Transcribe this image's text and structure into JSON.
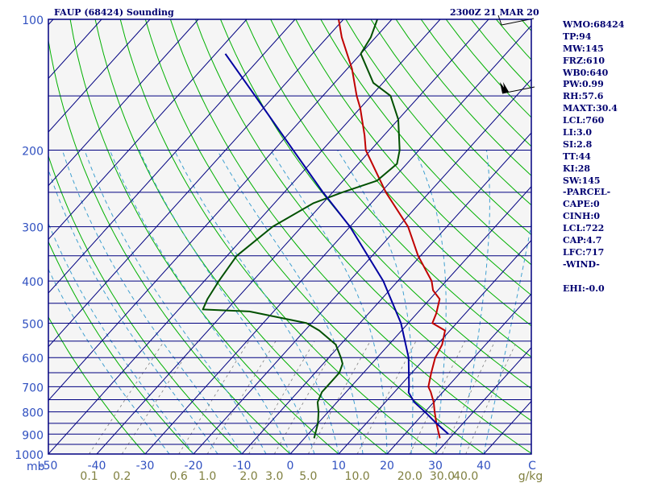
{
  "header": {
    "station": "FAUP (68424) Sounding",
    "time": "2300Z 21 MAR 20"
  },
  "indices": [
    "WMO:68424",
    "TP:94",
    "MW:145",
    "FRZ:610",
    "WB0:640",
    "PW:0.99",
    "RH:57.6",
    "MAXT:30.4",
    "LCL:760",
    "LI:3.0",
    "SI:2.8",
    "TT:44",
    "KI:28",
    "SW:145",
    "-PARCEL-",
    "CAPE:0",
    "CINH:0",
    "LCL:722",
    "CAP:4.7",
    "LFC:717",
    "-WIND-",
    "",
    "EHI:-0.0"
  ],
  "colors": {
    "background": "#ffffff",
    "plot_bg": "#f5f5f5",
    "frame": "#000080",
    "isobar": "#000080",
    "isotherm": "#000080",
    "dry_adiabat": "#00b000",
    "moist_adiabat": "#40a0d0",
    "mixing_ratio": "#808080",
    "temperature": "#c00000",
    "dewpoint": "#005000",
    "parcel": "#0000a0",
    "pressure_labels": "#3050c0",
    "temp_labels": "#3050c0",
    "mixratio_labels": "#808040",
    "text": "#000070"
  },
  "chart_data": {
    "type": "skew-t",
    "title": "FAUP (68424) Sounding",
    "xlabel": "",
    "ylabel": "mb",
    "xlim": [
      -50,
      50
    ],
    "ylim": [
      1000,
      100
    ],
    "y_scale": "log",
    "pressure_ticks": [
      100,
      200,
      300,
      400,
      500,
      600,
      700,
      800,
      900,
      1000
    ],
    "isobars": [
      100,
      150,
      200,
      250,
      300,
      350,
      400,
      450,
      500,
      550,
      600,
      650,
      700,
      750,
      800,
      850,
      900,
      950,
      1000
    ],
    "temperature_ticks": [
      -50,
      -40,
      -30,
      -20,
      -10,
      0,
      10,
      20,
      30,
      40
    ],
    "temperature_tick_labels": [
      "-50",
      "-40",
      "-30",
      "-20",
      "-10",
      "0",
      "10",
      "20",
      "30",
      "40"
    ],
    "temperature_unit_label": "C",
    "mixing_ratio_labels": [
      "0.1",
      "0.2",
      "0.6",
      "1.0",
      "2.0",
      "3.0",
      "5.0",
      "10.0",
      "20.0",
      "30.0",
      "40.0"
    ],
    "mixing_ratio_values": [
      0.1,
      0.2,
      0.6,
      1.0,
      2.0,
      3.0,
      5.0,
      10.0,
      20.0,
      30.0,
      40.0
    ],
    "mixing_ratio_unit_label": "g/kg",
    "series": [
      {
        "key": "temperature",
        "points": [
          [
            920,
            28
          ],
          [
            850,
            24.5
          ],
          [
            800,
            22
          ],
          [
            760,
            20
          ],
          [
            720,
            17.5
          ],
          [
            700,
            16
          ],
          [
            650,
            14
          ],
          [
            600,
            12
          ],
          [
            560,
            11
          ],
          [
            520,
            9
          ],
          [
            500,
            5
          ],
          [
            475,
            4
          ],
          [
            440,
            2
          ],
          [
            420,
            -1
          ],
          [
            400,
            -3
          ],
          [
            350,
            -10.5
          ],
          [
            300,
            -18
          ],
          [
            250,
            -29
          ],
          [
            200,
            -41
          ],
          [
            185,
            -44
          ],
          [
            160,
            -50
          ],
          [
            150,
            -53
          ],
          [
            130,
            -59
          ],
          [
            110,
            -67
          ],
          [
            100,
            -71
          ]
        ]
      },
      {
        "key": "dewpoint",
        "points": [
          [
            920,
            2
          ],
          [
            850,
            0
          ],
          [
            800,
            -2
          ],
          [
            760,
            -4
          ],
          [
            720,
            -5
          ],
          [
            700,
            -5
          ],
          [
            650,
            -5
          ],
          [
            620,
            -6
          ],
          [
            600,
            -7.5
          ],
          [
            560,
            -11
          ],
          [
            520,
            -17
          ],
          [
            500,
            -21
          ],
          [
            470,
            -35
          ],
          [
            465,
            -45
          ],
          [
            440,
            -46
          ],
          [
            400,
            -47
          ],
          [
            350,
            -48
          ],
          [
            300,
            -46
          ],
          [
            265,
            -42
          ],
          [
            250,
            -38
          ],
          [
            235,
            -33
          ],
          [
            215,
            -32
          ],
          [
            200,
            -34
          ],
          [
            170,
            -40
          ],
          [
            150,
            -46
          ],
          [
            140,
            -52
          ],
          [
            120,
            -60
          ],
          [
            110,
            -61
          ],
          [
            100,
            -63
          ]
        ]
      },
      {
        "key": "parcel",
        "points": [
          [
            900,
            29
          ],
          [
            850,
            24.5
          ],
          [
            800,
            20
          ],
          [
            760,
            16
          ],
          [
            722,
            13
          ],
          [
            700,
            12
          ],
          [
            600,
            6.5
          ],
          [
            500,
            -1.5
          ],
          [
            400,
            -13
          ],
          [
            300,
            -30
          ],
          [
            250,
            -42
          ],
          [
            200,
            -56
          ],
          [
            150,
            -74
          ],
          [
            120,
            -88
          ]
        ]
      }
    ]
  }
}
